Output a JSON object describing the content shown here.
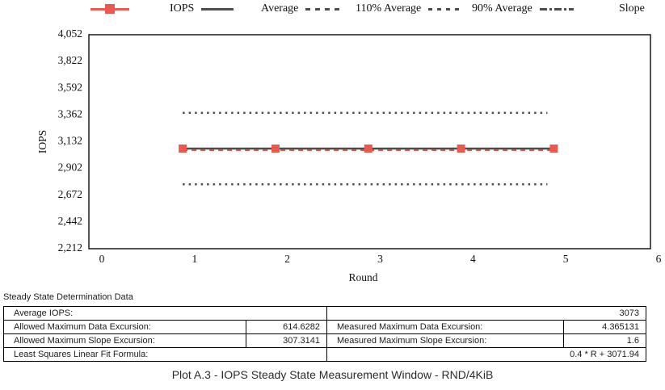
{
  "legend": {
    "items": [
      {
        "label": "",
        "sample": "marker"
      },
      {
        "label": "IOPS",
        "sample": "solid"
      },
      {
        "label": "Average",
        "sample": "dashed"
      },
      {
        "label": "110% Average",
        "sample": "dotted"
      },
      {
        "label": "90% Average",
        "sample": "dashdot"
      },
      {
        "label": "Slope",
        "sample": "none"
      }
    ]
  },
  "chart_data": {
    "type": "line",
    "xlabel": "Round",
    "ylabel": "IOPS",
    "xlim": [
      0,
      6
    ],
    "xticks": [
      0,
      1,
      2,
      3,
      4,
      5,
      6
    ],
    "ylim": [
      2212,
      4052
    ],
    "yticks": [
      4052,
      3822,
      3592,
      3362,
      3132,
      2902,
      2672,
      2442,
      2212
    ],
    "grid": false,
    "legend_position": "top",
    "series": [
      {
        "name": "IOPS",
        "x": [
          1,
          2,
          3,
          4,
          5
        ],
        "y": [
          3073,
          3073,
          3073,
          3073,
          3073
        ],
        "color": "#e8594f",
        "style": "dashed",
        "marker": "square"
      }
    ],
    "reference_lines": [
      {
        "name": "Average",
        "value": 3073,
        "style": "solid",
        "color": "#4d4d4d"
      },
      {
        "name": "110% Average",
        "value": 3380.3,
        "style": "dotted",
        "color": "#4d4d4d"
      },
      {
        "name": "90% Average",
        "value": 2765.7,
        "style": "dotted",
        "color": "#4d4d4d"
      },
      {
        "name": "Slope",
        "formula": "0.4 * R + 3071.94",
        "slope": 0.4,
        "intercept": 3071.94,
        "style": "dashdot",
        "color": "#4d4d4d"
      }
    ],
    "measurement_window_rounds": [
      1,
      5
    ]
  },
  "table": {
    "section_title": "Steady State Determination Data",
    "rows": [
      {
        "cells": [
          {
            "kind": "label",
            "text": "Average IOPS:",
            "span": 2
          },
          {
            "kind": "value",
            "text": "3073",
            "span": 2
          }
        ]
      },
      {
        "cells": [
          {
            "kind": "label",
            "text": "Allowed Maximum Data Excursion:"
          },
          {
            "kind": "value",
            "text": "614.6282"
          },
          {
            "kind": "label",
            "text": "Measured Maximum Data Excursion:"
          },
          {
            "kind": "value",
            "text": "4.365131"
          }
        ]
      },
      {
        "cells": [
          {
            "kind": "label",
            "text": "Allowed Maximum Slope Excursion:"
          },
          {
            "kind": "value",
            "text": "307.3141"
          },
          {
            "kind": "label",
            "text": "Measured Maximum Slope Excursion:"
          },
          {
            "kind": "value",
            "text": "1.6"
          }
        ]
      },
      {
        "cells": [
          {
            "kind": "label",
            "text": "Least Squares Linear Fit Formula:",
            "span": 2
          },
          {
            "kind": "value",
            "text": "0.4 * R + 3071.94",
            "span": 2
          }
        ]
      }
    ]
  },
  "caption": "Plot A.3 - IOPS Steady State Measurement Window - RND/4KiB",
  "colors": {
    "series_red": "#e8594f",
    "line_gray": "#4d4d4d",
    "plot_border": "#1a1a1a",
    "table_border": "#000000"
  }
}
